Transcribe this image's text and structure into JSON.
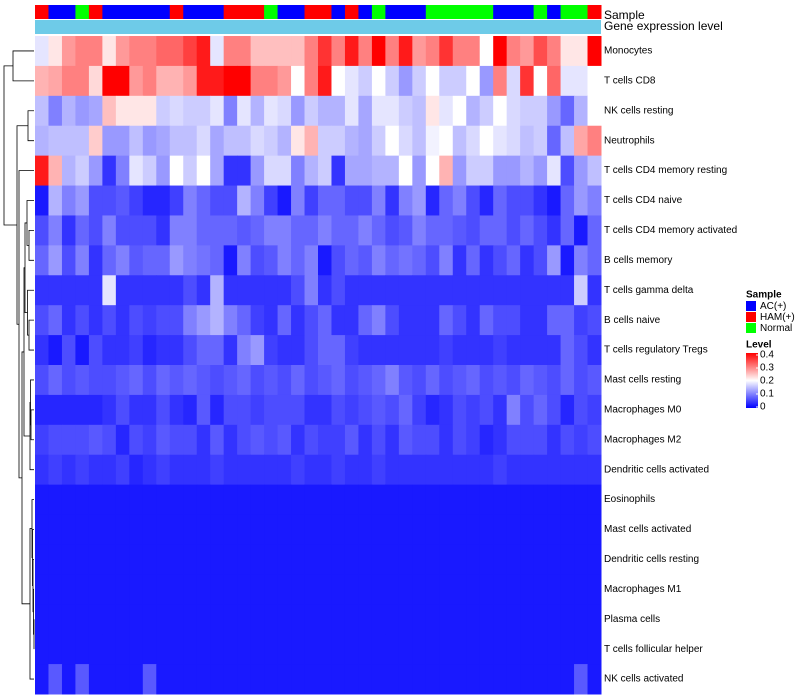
{
  "chart_data": {
    "type": "heatmap",
    "annotation_titles": [
      "Sample",
      "Gene expression level"
    ],
    "sample_groups": [
      "HAM(+)",
      "AC(+)",
      "AC(+)",
      "Normal",
      "HAM(+)",
      "AC(+)",
      "AC(+)",
      "AC(+)",
      "AC(+)",
      "AC(+)",
      "HAM(+)",
      "AC(+)",
      "AC(+)",
      "AC(+)",
      "HAM(+)",
      "HAM(+)",
      "HAM(+)",
      "Normal",
      "AC(+)",
      "AC(+)",
      "HAM(+)",
      "HAM(+)",
      "AC(+)",
      "HAM(+)",
      "AC(+)",
      "Normal",
      "AC(+)",
      "AC(+)",
      "AC(+)",
      "Normal",
      "Normal",
      "Normal",
      "Normal",
      "Normal",
      "AC(+)",
      "AC(+)",
      "AC(+)",
      "Normal",
      "AC(+)",
      "Normal",
      "Normal",
      "HAM(+)"
    ],
    "expression_bar_color": "#6ecbe8",
    "rows": [
      "Monocytes",
      "T cells CD8",
      "NK cells resting",
      "Neutrophils",
      "T cells CD4 memory resting",
      "T cells CD4 naive",
      "T cells CD4 memory activated",
      "B cells memory",
      "T cells gamma delta",
      "B cells naive",
      "T cells regulatory  Tregs",
      "Mast cells resting",
      "Macrophages M0",
      "Macrophages M2",
      "Dendritic cells activated",
      "Eosinophils",
      "Mast cells activated",
      "Dendritic cells resting",
      "Macrophages M1",
      "Plasma cells",
      "T cells follicular helper",
      "NK cells activated"
    ],
    "values": [
      [
        0.18,
        0.22,
        0.28,
        0.3,
        0.3,
        0.22,
        0.28,
        0.3,
        0.3,
        0.32,
        0.32,
        0.35,
        0.38,
        0.18,
        0.3,
        0.3,
        0.25,
        0.25,
        0.25,
        0.25,
        0.3,
        0.36,
        0.3,
        0.38,
        0.3,
        0.4,
        0.3,
        0.38,
        0.28,
        0.3,
        0.36,
        0.3,
        0.3,
        0.2,
        0.4,
        0.3,
        0.28,
        0.34,
        0.3,
        0.22,
        0.22,
        0.4
      ],
      [
        0.26,
        0.27,
        0.3,
        0.3,
        0.23,
        0.4,
        0.4,
        0.28,
        0.3,
        0.26,
        0.26,
        0.28,
        0.38,
        0.38,
        0.4,
        0.4,
        0.3,
        0.3,
        0.28,
        0.2,
        0.3,
        0.38,
        0.2,
        0.18,
        0.16,
        0.2,
        0.16,
        0.12,
        0.16,
        0.2,
        0.16,
        0.16,
        0.2,
        0.12,
        0.3,
        0.17,
        0.36,
        0.2,
        0.32,
        0.18,
        0.18,
        0.2
      ],
      [
        0.15,
        0.1,
        0.14,
        0.12,
        0.13,
        0.25,
        0.22,
        0.22,
        0.22,
        0.16,
        0.17,
        0.16,
        0.16,
        0.18,
        0.1,
        0.18,
        0.14,
        0.18,
        0.17,
        0.12,
        0.16,
        0.14,
        0.14,
        0.18,
        0.13,
        0.18,
        0.18,
        0.16,
        0.15,
        0.22,
        0.18,
        0.2,
        0.14,
        0.16,
        0.2,
        0.17,
        0.16,
        0.16,
        0.12,
        0.08,
        0.14,
        0.2
      ],
      [
        0.14,
        0.15,
        0.15,
        0.15,
        0.24,
        0.12,
        0.12,
        0.15,
        0.12,
        0.13,
        0.15,
        0.15,
        0.17,
        0.13,
        0.15,
        0.15,
        0.17,
        0.16,
        0.14,
        0.22,
        0.26,
        0.16,
        0.16,
        0.14,
        0.13,
        0.16,
        0.2,
        0.17,
        0.15,
        0.19,
        0.2,
        0.15,
        0.17,
        0.2,
        0.18,
        0.17,
        0.15,
        0.16,
        0.08,
        0.15,
        0.27,
        0.3
      ],
      [
        0.38,
        0.26,
        0.14,
        0.16,
        0.12,
        0.04,
        0.1,
        0.18,
        0.16,
        0.12,
        0.2,
        0.16,
        0.2,
        0.13,
        0.04,
        0.04,
        0.12,
        0.17,
        0.17,
        0.1,
        0.14,
        0.16,
        0.04,
        0.13,
        0.13,
        0.14,
        0.14,
        0.2,
        0.12,
        0.2,
        0.26,
        0.12,
        0.16,
        0.16,
        0.12,
        0.12,
        0.14,
        0.12,
        0.18,
        0.06,
        0.12,
        0.15
      ],
      [
        0.02,
        0.14,
        0.1,
        0.12,
        0.06,
        0.06,
        0.07,
        0.05,
        0.03,
        0.03,
        0.05,
        0.1,
        0.08,
        0.06,
        0.06,
        0.14,
        0.1,
        0.05,
        0.02,
        0.1,
        0.05,
        0.08,
        0.08,
        0.06,
        0.06,
        0.1,
        0.04,
        0.1,
        0.12,
        0.03,
        0.08,
        0.1,
        0.06,
        0.03,
        0.08,
        0.06,
        0.06,
        0.04,
        0.02,
        0.08,
        0.12,
        0.1
      ],
      [
        0.06,
        0.1,
        0.04,
        0.08,
        0.06,
        0.1,
        0.06,
        0.06,
        0.06,
        0.04,
        0.1,
        0.1,
        0.08,
        0.08,
        0.08,
        0.07,
        0.08,
        0.1,
        0.1,
        0.08,
        0.08,
        0.1,
        0.08,
        0.08,
        0.1,
        0.08,
        0.06,
        0.07,
        0.1,
        0.08,
        0.08,
        0.07,
        0.06,
        0.08,
        0.08,
        0.06,
        0.08,
        0.06,
        0.04,
        0.08,
        0.02,
        0.08
      ],
      [
        0.08,
        0.12,
        0.06,
        0.1,
        0.04,
        0.08,
        0.1,
        0.07,
        0.08,
        0.08,
        0.12,
        0.1,
        0.09,
        0.08,
        0.02,
        0.1,
        0.06,
        0.07,
        0.1,
        0.08,
        0.1,
        0.02,
        0.06,
        0.08,
        0.07,
        0.1,
        0.08,
        0.09,
        0.08,
        0.06,
        0.1,
        0.04,
        0.08,
        0.04,
        0.06,
        0.08,
        0.04,
        0.06,
        0.12,
        0.02,
        0.1,
        0.08
      ],
      [
        0.04,
        0.04,
        0.04,
        0.04,
        0.04,
        0.18,
        0.04,
        0.04,
        0.04,
        0.04,
        0.04,
        0.06,
        0.04,
        0.14,
        0.04,
        0.04,
        0.04,
        0.04,
        0.04,
        0.06,
        0.1,
        0.04,
        0.06,
        0.04,
        0.04,
        0.04,
        0.04,
        0.04,
        0.04,
        0.04,
        0.04,
        0.04,
        0.04,
        0.04,
        0.04,
        0.04,
        0.04,
        0.04,
        0.04,
        0.04,
        0.16,
        0.04
      ],
      [
        0.06,
        0.08,
        0.04,
        0.06,
        0.04,
        0.06,
        0.04,
        0.06,
        0.05,
        0.06,
        0.06,
        0.1,
        0.12,
        0.14,
        0.1,
        0.08,
        0.05,
        0.04,
        0.08,
        0.04,
        0.06,
        0.08,
        0.04,
        0.04,
        0.08,
        0.1,
        0.06,
        0.04,
        0.04,
        0.04,
        0.08,
        0.06,
        0.04,
        0.08,
        0.06,
        0.06,
        0.04,
        0.04,
        0.08,
        0.08,
        0.05,
        0.06
      ],
      [
        0.04,
        0.02,
        0.06,
        0.02,
        0.06,
        0.04,
        0.04,
        0.05,
        0.03,
        0.04,
        0.04,
        0.06,
        0.08,
        0.08,
        0.04,
        0.1,
        0.12,
        0.05,
        0.04,
        0.04,
        0.06,
        0.08,
        0.08,
        0.05,
        0.04,
        0.04,
        0.04,
        0.04,
        0.04,
        0.04,
        0.05,
        0.04,
        0.04,
        0.04,
        0.05,
        0.04,
        0.04,
        0.04,
        0.04,
        0.08,
        0.06,
        0.04
      ],
      [
        0.06,
        0.08,
        0.06,
        0.07,
        0.06,
        0.06,
        0.07,
        0.08,
        0.06,
        0.08,
        0.07,
        0.08,
        0.07,
        0.06,
        0.07,
        0.08,
        0.06,
        0.07,
        0.06,
        0.08,
        0.06,
        0.07,
        0.08,
        0.06,
        0.07,
        0.08,
        0.1,
        0.07,
        0.06,
        0.08,
        0.06,
        0.07,
        0.08,
        0.06,
        0.07,
        0.06,
        0.08,
        0.07,
        0.06,
        0.08,
        0.06,
        0.07
      ],
      [
        0.03,
        0.03,
        0.03,
        0.03,
        0.03,
        0.04,
        0.06,
        0.04,
        0.04,
        0.06,
        0.04,
        0.03,
        0.07,
        0.03,
        0.06,
        0.06,
        0.05,
        0.06,
        0.06,
        0.06,
        0.04,
        0.04,
        0.06,
        0.05,
        0.06,
        0.07,
        0.06,
        0.08,
        0.05,
        0.03,
        0.04,
        0.06,
        0.05,
        0.06,
        0.04,
        0.1,
        0.06,
        0.08,
        0.06,
        0.03,
        0.06,
        0.05
      ],
      [
        0.05,
        0.06,
        0.06,
        0.06,
        0.07,
        0.06,
        0.03,
        0.06,
        0.05,
        0.07,
        0.06,
        0.06,
        0.04,
        0.07,
        0.04,
        0.06,
        0.07,
        0.06,
        0.07,
        0.04,
        0.06,
        0.05,
        0.05,
        0.07,
        0.04,
        0.06,
        0.04,
        0.07,
        0.06,
        0.06,
        0.04,
        0.06,
        0.05,
        0.03,
        0.04,
        0.06,
        0.06,
        0.06,
        0.04,
        0.06,
        0.05,
        0.06
      ],
      [
        0.04,
        0.05,
        0.04,
        0.05,
        0.04,
        0.04,
        0.05,
        0.03,
        0.04,
        0.05,
        0.04,
        0.04,
        0.04,
        0.05,
        0.04,
        0.04,
        0.04,
        0.04,
        0.04,
        0.05,
        0.04,
        0.04,
        0.05,
        0.04,
        0.04,
        0.05,
        0.04,
        0.04,
        0.04,
        0.04,
        0.04,
        0.04,
        0.04,
        0.04,
        0.05,
        0.04,
        0.04,
        0.04,
        0.04,
        0.04,
        0.04,
        0.04
      ],
      [
        0.02,
        0.02,
        0.02,
        0.02,
        0.02,
        0.02,
        0.02,
        0.02,
        0.02,
        0.02,
        0.02,
        0.02,
        0.02,
        0.02,
        0.02,
        0.02,
        0.02,
        0.02,
        0.02,
        0.02,
        0.02,
        0.02,
        0.02,
        0.02,
        0.02,
        0.02,
        0.02,
        0.02,
        0.02,
        0.02,
        0.02,
        0.02,
        0.02,
        0.02,
        0.02,
        0.02,
        0.02,
        0.02,
        0.02,
        0.02,
        0.02,
        0.02
      ],
      [
        0.02,
        0.02,
        0.02,
        0.02,
        0.02,
        0.02,
        0.02,
        0.02,
        0.02,
        0.02,
        0.02,
        0.02,
        0.02,
        0.02,
        0.02,
        0.02,
        0.02,
        0.02,
        0.02,
        0.02,
        0.02,
        0.02,
        0.02,
        0.02,
        0.02,
        0.02,
        0.02,
        0.02,
        0.02,
        0.02,
        0.02,
        0.02,
        0.02,
        0.02,
        0.02,
        0.02,
        0.02,
        0.02,
        0.02,
        0.02,
        0.02,
        0.02
      ],
      [
        0.02,
        0.02,
        0.02,
        0.02,
        0.02,
        0.02,
        0.02,
        0.02,
        0.02,
        0.02,
        0.02,
        0.02,
        0.02,
        0.02,
        0.02,
        0.02,
        0.02,
        0.02,
        0.02,
        0.02,
        0.02,
        0.02,
        0.02,
        0.02,
        0.02,
        0.02,
        0.02,
        0.02,
        0.02,
        0.02,
        0.02,
        0.02,
        0.02,
        0.02,
        0.02,
        0.02,
        0.02,
        0.02,
        0.02,
        0.02,
        0.02,
        0.02
      ],
      [
        0.02,
        0.02,
        0.02,
        0.02,
        0.02,
        0.02,
        0.02,
        0.02,
        0.02,
        0.02,
        0.02,
        0.02,
        0.02,
        0.02,
        0.02,
        0.02,
        0.02,
        0.02,
        0.02,
        0.02,
        0.02,
        0.02,
        0.02,
        0.02,
        0.02,
        0.02,
        0.02,
        0.02,
        0.02,
        0.02,
        0.02,
        0.02,
        0.02,
        0.02,
        0.02,
        0.02,
        0.02,
        0.02,
        0.02,
        0.02,
        0.02,
        0.02
      ],
      [
        0.02,
        0.02,
        0.02,
        0.02,
        0.02,
        0.02,
        0.02,
        0.02,
        0.02,
        0.02,
        0.02,
        0.02,
        0.02,
        0.02,
        0.02,
        0.02,
        0.02,
        0.02,
        0.02,
        0.02,
        0.02,
        0.02,
        0.02,
        0.02,
        0.02,
        0.02,
        0.02,
        0.02,
        0.02,
        0.02,
        0.02,
        0.02,
        0.02,
        0.02,
        0.02,
        0.02,
        0.02,
        0.02,
        0.02,
        0.02,
        0.02,
        0.02
      ],
      [
        0.02,
        0.02,
        0.02,
        0.02,
        0.02,
        0.02,
        0.02,
        0.02,
        0.02,
        0.02,
        0.02,
        0.02,
        0.02,
        0.02,
        0.02,
        0.02,
        0.02,
        0.02,
        0.02,
        0.02,
        0.02,
        0.02,
        0.02,
        0.02,
        0.02,
        0.02,
        0.02,
        0.02,
        0.02,
        0.02,
        0.02,
        0.02,
        0.02,
        0.02,
        0.02,
        0.02,
        0.02,
        0.02,
        0.02,
        0.02,
        0.02,
        0.02
      ],
      [
        0.02,
        0.07,
        0.02,
        0.07,
        0.02,
        0.02,
        0.02,
        0.02,
        0.07,
        0.02,
        0.02,
        0.02,
        0.02,
        0.02,
        0.02,
        0.02,
        0.02,
        0.02,
        0.02,
        0.02,
        0.02,
        0.02,
        0.02,
        0.02,
        0.02,
        0.02,
        0.02,
        0.02,
        0.02,
        0.02,
        0.02,
        0.02,
        0.02,
        0.02,
        0.02,
        0.02,
        0.02,
        0.02,
        0.02,
        0.02,
        0.07,
        0.02
      ]
    ],
    "value_range": [
      0,
      0.4
    ],
    "colorscale": {
      "low": "#0000ff",
      "mid": "#ffffff",
      "high": "#ff0000"
    },
    "legend": {
      "sample_title": "Sample",
      "groups": [
        {
          "label": "AC(+)",
          "color": "#0000ff"
        },
        {
          "label": "HAM(+)",
          "color": "#ff0000"
        },
        {
          "label": "Normal",
          "color": "#00ff00"
        }
      ],
      "level_title": "Level",
      "level_ticks": [
        "0.4",
        "0.3",
        "0.2",
        "0.1",
        "0"
      ]
    }
  }
}
